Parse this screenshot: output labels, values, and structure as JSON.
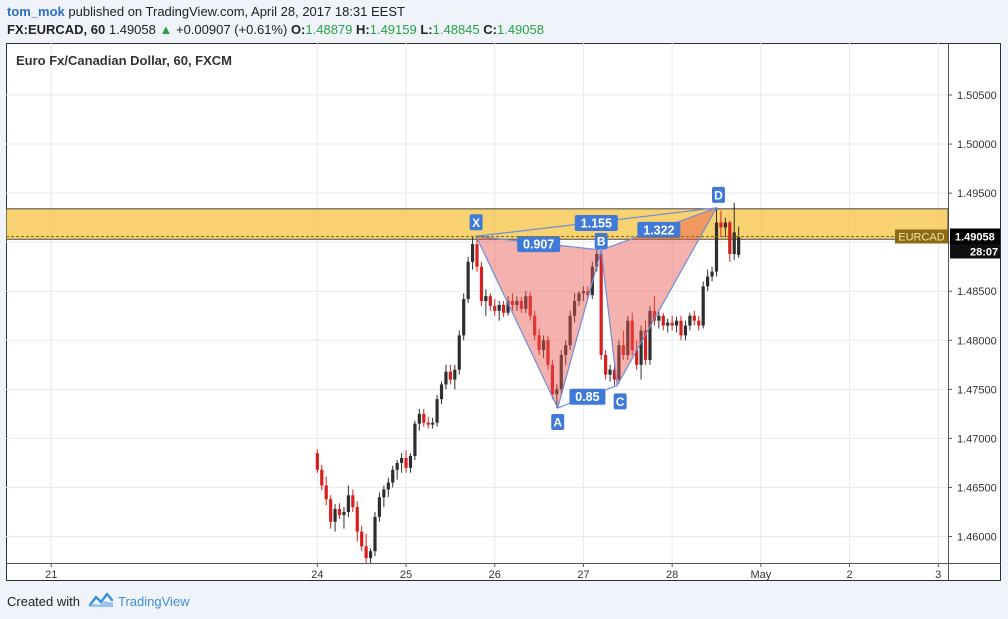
{
  "header": {
    "author": "tom_mok",
    "published_text": "published on TradingView.com, April 28, 2017 18:31 EEST",
    "symbol": "FX:EURCAD, 60",
    "last": "1.49058",
    "change_arrow": "▲",
    "change": "+0.00907 (+0.61%)",
    "o_label": "O:",
    "o_value": "1.48879",
    "h_label": "H:",
    "h_value": "1.49159",
    "l_label": "L:",
    "l_value": "1.48845",
    "c_label": "C:",
    "c_value": "1.49058"
  },
  "chart_title": "Euro Fx/Canadian Dollar, 60, FXCM",
  "footer": {
    "created_with": "Created with",
    "brand": "TradingView"
  },
  "colors": {
    "up": "#2e2e2e",
    "down": "#d91e1e",
    "zone_fill": "#f5c342",
    "pattern_fill": "#e8524a",
    "pattern_stroke": "#6d8fd6",
    "label_bg": "#3f7ad8",
    "price_tag": "#8a6a14",
    "last_tag": "#000000"
  },
  "chart_data": {
    "type": "candlestick",
    "title": "Euro Fx/Canadian Dollar, 60, FXCM",
    "x_ticks": [
      "21",
      "24",
      "25",
      "26",
      "27",
      "28",
      "May",
      "2",
      "3"
    ],
    "y_ticks": [
      "1.50500",
      "1.50000",
      "1.49500",
      "1.49000",
      "1.48500",
      "1.48000",
      "1.47500",
      "1.47000",
      "1.46500",
      "1.46000"
    ],
    "ylim": [
      1.4573,
      1.5103
    ],
    "xlim": [
      20.49,
      31.11
    ],
    "x_tick_positions": [
      21,
      24,
      25,
      26,
      27,
      28,
      29,
      30,
      31
    ],
    "last_price": "1.49058",
    "symbol_tag": "EURCAD",
    "countdown": "28:07",
    "supply_zone": {
      "from": 1.4903,
      "to": 1.4934
    },
    "harmonic_pattern": {
      "points": [
        {
          "label": "X",
          "x": 25.79,
          "y": 1.4906
        },
        {
          "label": "A",
          "x": 26.71,
          "y": 1.4731
        },
        {
          "label": "B",
          "x": 27.2,
          "y": 1.4892
        },
        {
          "label": "C",
          "x": 27.38,
          "y": 1.4754
        },
        {
          "label": "D",
          "x": 28.5,
          "y": 1.4935
        }
      ],
      "ratios": [
        {
          "label": "1.155",
          "between": "X-D"
        },
        {
          "label": "0.907",
          "between": "X-B"
        },
        {
          "label": "1.322",
          "between": "B-D"
        },
        {
          "label": "0.85",
          "between": "A-C"
        }
      ]
    },
    "candles": [
      [
        24.0,
        1.4685,
        1.4689,
        1.4665,
        1.4668
      ],
      [
        24.05,
        1.4668,
        1.4673,
        1.4647,
        1.4652
      ],
      [
        24.1,
        1.4652,
        1.4661,
        1.4632,
        1.4638
      ],
      [
        24.15,
        1.4638,
        1.4642,
        1.4608,
        1.4615
      ],
      [
        24.2,
        1.4615,
        1.4633,
        1.4605,
        1.4628
      ],
      [
        24.25,
        1.4628,
        1.4634,
        1.4618,
        1.4622
      ],
      [
        24.3,
        1.4622,
        1.463,
        1.4608,
        1.4625
      ],
      [
        24.35,
        1.4625,
        1.4652,
        1.462,
        1.4642
      ],
      [
        24.4,
        1.4642,
        1.4648,
        1.4625,
        1.463
      ],
      [
        24.45,
        1.463,
        1.4636,
        1.4595,
        1.4605
      ],
      [
        24.5,
        1.4605,
        1.4611,
        1.4585,
        1.459
      ],
      [
        24.55,
        1.459,
        1.4603,
        1.4573,
        1.4578
      ],
      [
        24.6,
        1.4578,
        1.4588,
        1.4573,
        1.4585
      ],
      [
        24.65,
        1.4585,
        1.4625,
        1.458,
        1.462
      ],
      [
        24.7,
        1.462,
        1.4645,
        1.4615,
        1.464
      ],
      [
        24.75,
        1.464,
        1.4652,
        1.463,
        1.4648
      ],
      [
        24.8,
        1.4648,
        1.466,
        1.464,
        1.4655
      ],
      [
        24.85,
        1.4655,
        1.4672,
        1.465,
        1.4668
      ],
      [
        24.9,
        1.4668,
        1.4678,
        1.4658,
        1.4675
      ],
      [
        24.95,
        1.4675,
        1.4685,
        1.4665,
        1.468
      ],
      [
        25.0,
        1.468,
        1.4688,
        1.4665,
        1.467
      ],
      [
        25.05,
        1.467,
        1.4685,
        1.4665,
        1.4682
      ],
      [
        25.1,
        1.4682,
        1.4718,
        1.4678,
        1.4715
      ],
      [
        25.15,
        1.4715,
        1.473,
        1.4708,
        1.4725
      ],
      [
        25.2,
        1.4725,
        1.473,
        1.4712,
        1.4716
      ],
      [
        25.25,
        1.4716,
        1.4722,
        1.471,
        1.4714
      ],
      [
        25.3,
        1.4714,
        1.4721,
        1.471,
        1.4716
      ],
      [
        25.35,
        1.4716,
        1.4744,
        1.4712,
        1.474
      ],
      [
        25.4,
        1.474,
        1.4758,
        1.4735,
        1.4755
      ],
      [
        25.45,
        1.4755,
        1.4775,
        1.475,
        1.4768
      ],
      [
        25.5,
        1.4768,
        1.4775,
        1.4755,
        1.476
      ],
      [
        25.55,
        1.476,
        1.4775,
        1.475,
        1.477
      ],
      [
        25.6,
        1.477,
        1.481,
        1.4765,
        1.4805
      ],
      [
        25.65,
        1.4805,
        1.4848,
        1.48,
        1.4842
      ],
      [
        25.7,
        1.4842,
        1.4885,
        1.4838,
        1.488
      ],
      [
        25.75,
        1.488,
        1.4906,
        1.4872,
        1.4898
      ],
      [
        25.8,
        1.4898,
        1.4904,
        1.487,
        1.4875
      ],
      [
        25.85,
        1.4875,
        1.488,
        1.4835,
        1.484
      ],
      [
        25.9,
        1.484,
        1.4852,
        1.4825,
        1.4845
      ],
      [
        25.95,
        1.4845,
        1.4848,
        1.483,
        1.4835
      ],
      [
        26.0,
        1.4835,
        1.4842,
        1.4825,
        1.483
      ],
      [
        26.05,
        1.483,
        1.484,
        1.482,
        1.4836
      ],
      [
        26.1,
        1.4836,
        1.484,
        1.4824,
        1.4828
      ],
      [
        26.15,
        1.4828,
        1.4845,
        1.4825,
        1.484
      ],
      [
        26.2,
        1.484,
        1.4848,
        1.483,
        1.4836
      ],
      [
        26.25,
        1.4836,
        1.4845,
        1.483,
        1.484
      ],
      [
        26.3,
        1.484,
        1.4844,
        1.4828,
        1.4832
      ],
      [
        26.35,
        1.4832,
        1.485,
        1.4828,
        1.4845
      ],
      [
        26.4,
        1.4845,
        1.4849,
        1.482,
        1.4825
      ],
      [
        26.45,
        1.4825,
        1.483,
        1.48,
        1.4805
      ],
      [
        26.5,
        1.4805,
        1.4812,
        1.4785,
        1.479
      ],
      [
        26.55,
        1.479,
        1.4805,
        1.4782,
        1.48
      ],
      [
        26.6,
        1.48,
        1.4804,
        1.477,
        1.4775
      ],
      [
        26.65,
        1.4775,
        1.478,
        1.474,
        1.4745
      ],
      [
        26.7,
        1.4745,
        1.4755,
        1.4731,
        1.475
      ],
      [
        26.75,
        1.475,
        1.479,
        1.4745,
        1.4785
      ],
      [
        26.8,
        1.4785,
        1.48,
        1.4775,
        1.4795
      ],
      [
        26.85,
        1.4795,
        1.483,
        1.479,
        1.4825
      ],
      [
        26.9,
        1.4825,
        1.4848,
        1.4818,
        1.484
      ],
      [
        26.95,
        1.484,
        1.485,
        1.4835,
        1.4848
      ],
      [
        27.0,
        1.4848,
        1.4855,
        1.484,
        1.485
      ],
      [
        27.05,
        1.485,
        1.4855,
        1.4842,
        1.4846
      ],
      [
        27.1,
        1.4846,
        1.488,
        1.4842,
        1.4875
      ],
      [
        27.15,
        1.4875,
        1.4892,
        1.487,
        1.4888
      ],
      [
        27.2,
        1.4888,
        1.489,
        1.478,
        1.4785
      ],
      [
        27.25,
        1.4785,
        1.479,
        1.476,
        1.4765
      ],
      [
        27.3,
        1.4765,
        1.4775,
        1.4758,
        1.477
      ],
      [
        27.35,
        1.477,
        1.478,
        1.4754,
        1.476
      ],
      [
        27.4,
        1.476,
        1.48,
        1.4756,
        1.4795
      ],
      [
        27.45,
        1.4795,
        1.481,
        1.478,
        1.4785
      ],
      [
        27.5,
        1.4785,
        1.4825,
        1.478,
        1.482
      ],
      [
        27.55,
        1.482,
        1.4828,
        1.4785,
        1.479
      ],
      [
        27.6,
        1.479,
        1.48,
        1.477,
        1.4775
      ],
      [
        27.65,
        1.4775,
        1.4815,
        1.476,
        1.481
      ],
      [
        27.7,
        1.481,
        1.482,
        1.4775,
        1.478
      ],
      [
        27.75,
        1.478,
        1.4835,
        1.4775,
        1.483
      ],
      [
        27.8,
        1.483,
        1.4845,
        1.4815,
        1.482
      ],
      [
        27.85,
        1.482,
        1.483,
        1.4812,
        1.4825
      ],
      [
        27.9,
        1.4825,
        1.4828,
        1.481,
        1.4815
      ],
      [
        27.95,
        1.4815,
        1.4822,
        1.4808,
        1.4818
      ],
      [
        28.0,
        1.4818,
        1.4825,
        1.481,
        1.4815
      ],
      [
        28.05,
        1.4815,
        1.4824,
        1.4808,
        1.482
      ],
      [
        28.1,
        1.482,
        1.4825,
        1.48,
        1.4805
      ],
      [
        28.15,
        1.4805,
        1.482,
        1.48,
        1.4815
      ],
      [
        28.2,
        1.4815,
        1.4828,
        1.481,
        1.4825
      ],
      [
        28.25,
        1.4825,
        1.483,
        1.4815,
        1.482
      ],
      [
        28.3,
        1.482,
        1.4825,
        1.481,
        1.4815
      ],
      [
        28.35,
        1.4815,
        1.486,
        1.4812,
        1.4855
      ],
      [
        28.4,
        1.4855,
        1.4872,
        1.485,
        1.4865
      ],
      [
        28.45,
        1.4865,
        1.4875,
        1.486,
        1.487
      ],
      [
        28.5,
        1.487,
        1.4935,
        1.4865,
        1.492
      ],
      [
        28.55,
        1.492,
        1.4932,
        1.4905,
        1.4915
      ],
      [
        28.6,
        1.4915,
        1.4925,
        1.4905,
        1.492
      ],
      [
        28.65,
        1.492,
        1.4922,
        1.488,
        1.4888
      ],
      [
        28.7,
        1.4888,
        1.494,
        1.4882,
        1.491
      ],
      [
        28.75,
        1.4887,
        1.4916,
        1.4884,
        1.4905
      ]
    ]
  }
}
